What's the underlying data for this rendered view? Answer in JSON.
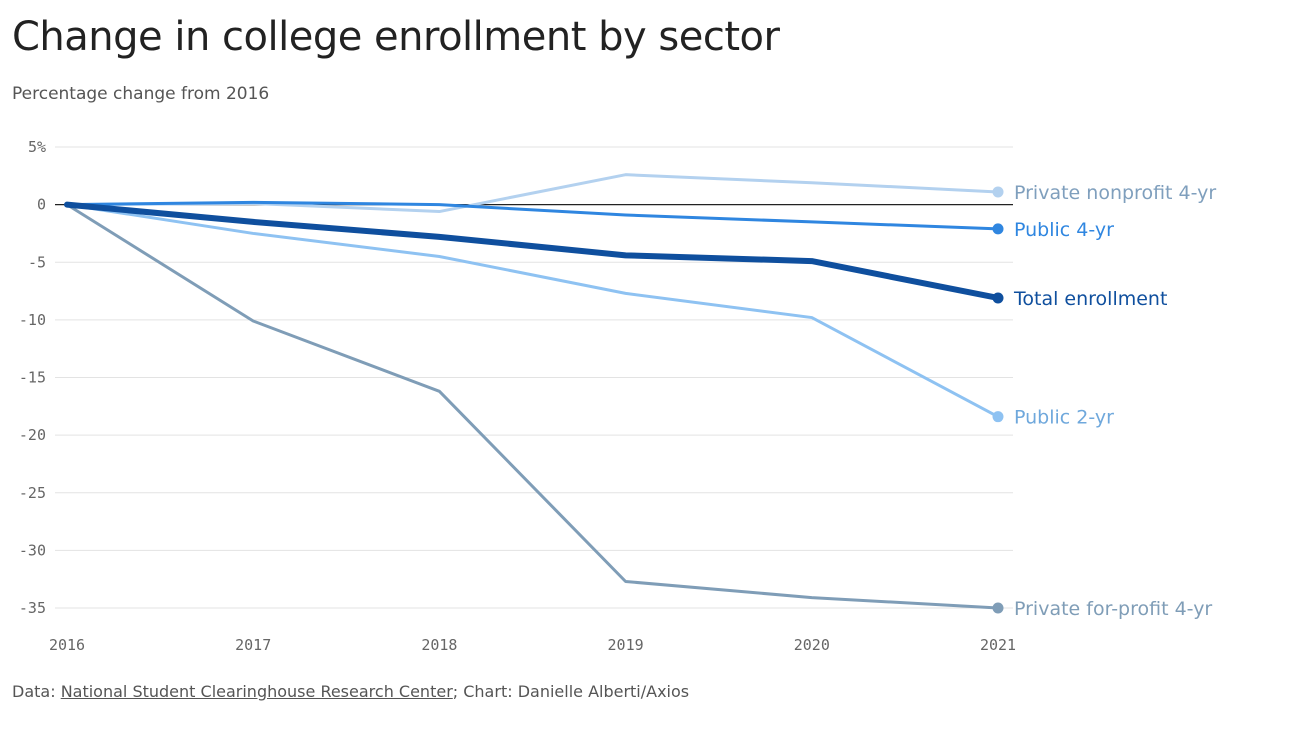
{
  "chart_data": {
    "type": "line",
    "title": "Change in college enrollment by sector",
    "subtitle": "Percentage change from 2016",
    "x": [
      "2016",
      "2017",
      "2018",
      "2019",
      "2020",
      "2021"
    ],
    "y_ticks": [
      {
        "value": 5,
        "label": "5%"
      },
      {
        "value": 0,
        "label": "0"
      },
      {
        "value": -5,
        "label": "-5"
      },
      {
        "value": -10,
        "label": "-10"
      },
      {
        "value": -15,
        "label": "-15"
      },
      {
        "value": -20,
        "label": "-20"
      },
      {
        "value": -25,
        "label": "-25"
      },
      {
        "value": -30,
        "label": "-30"
      },
      {
        "value": -35,
        "label": "-35"
      }
    ],
    "ylim": [
      -35,
      5
    ],
    "grid": true,
    "series": [
      {
        "name": "Private nonprofit 4-yr",
        "values": [
          0,
          0.1,
          -0.6,
          2.6,
          1.9,
          1.1
        ],
        "color": "#b3d1ef",
        "label_color": "#7f9fbd",
        "width": 3
      },
      {
        "name": "Public 4-yr",
        "values": [
          0,
          0.2,
          0,
          -0.9,
          -1.5,
          -2.1
        ],
        "color": "#2f86e0",
        "label_color": "#2f86e0",
        "width": 3
      },
      {
        "name": "Total enrollment",
        "values": [
          0,
          -1.5,
          -2.8,
          -4.4,
          -4.9,
          -8.1
        ],
        "color": "#0f4f9e",
        "label_color": "#0f4f9e",
        "width": 6
      },
      {
        "name": "Public 2-yr",
        "values": [
          0,
          -2.5,
          -4.5,
          -7.7,
          -9.8,
          -18.4
        ],
        "color": "#8ec2f2",
        "label_color": "#6fa8dc",
        "width": 3
      },
      {
        "name": "Private for-profit 4-yr",
        "values": [
          0,
          -10.1,
          -16.2,
          -32.7,
          -34.1,
          -35
        ],
        "color": "#7f9db7",
        "label_color": "#7f9db7",
        "width": 3
      }
    ]
  },
  "footer": {
    "prefix": "Data: ",
    "source": "National Student Clearinghouse Research Center",
    "suffix": "; Chart: Danielle Alberti/Axios"
  }
}
